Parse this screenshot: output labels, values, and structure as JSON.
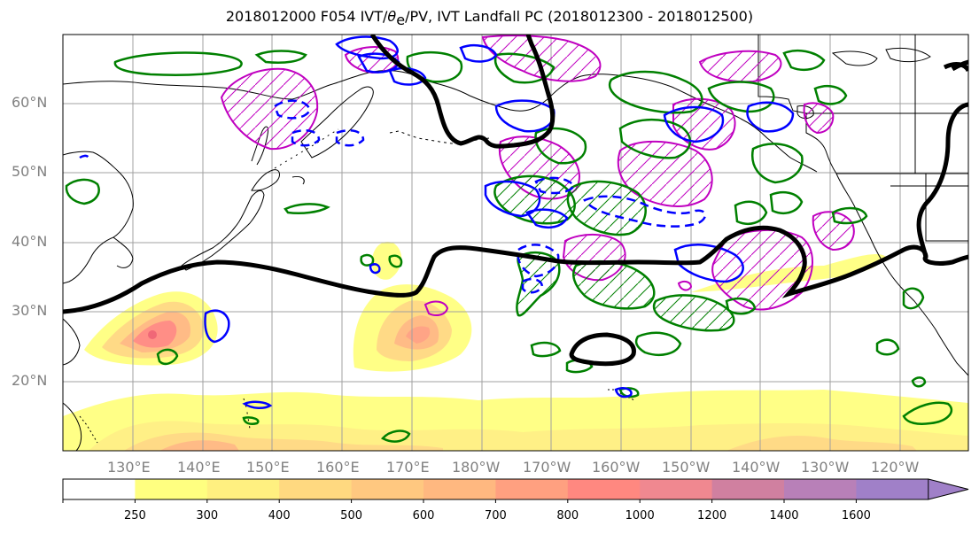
{
  "figure": {
    "title_prefix": "2018012000 F054 IVT/",
    "title_theta": "θ",
    "title_sub": "e",
    "title_suffix": "/PV, IVT Landfall PC (2018012300 - 2018012500)"
  },
  "map": {
    "lat_labels": [
      "60°N",
      "50°N",
      "40°N",
      "30°N",
      "20°N"
    ],
    "lon_labels": [
      "130°E",
      "140°E",
      "150°E",
      "160°E",
      "170°E",
      "180°W",
      "170°W",
      "160°W",
      "150°W",
      "140°W",
      "130°W",
      "120°W"
    ],
    "ocean_color": "#ffffff",
    "coastline_color": "#000000"
  },
  "colorbar": {
    "ticks": [
      "250",
      "300",
      "400",
      "500",
      "600",
      "700",
      "800",
      "1000",
      "1200",
      "1400",
      "1600"
    ],
    "colors": [
      "#ffffff",
      "#ffff80",
      "#fff080",
      "#ffd980",
      "#ffc880",
      "#ffb880",
      "#ffa080",
      "#ff8880",
      "#f08890",
      "#d080a0",
      "#b880b8",
      "#a080c8"
    ]
  },
  "contour_colors": {
    "theta_e": "#000000",
    "pv_green": "#008000",
    "ivt_blue": "#0000ff",
    "pc_magenta": "#c000c0"
  }
}
